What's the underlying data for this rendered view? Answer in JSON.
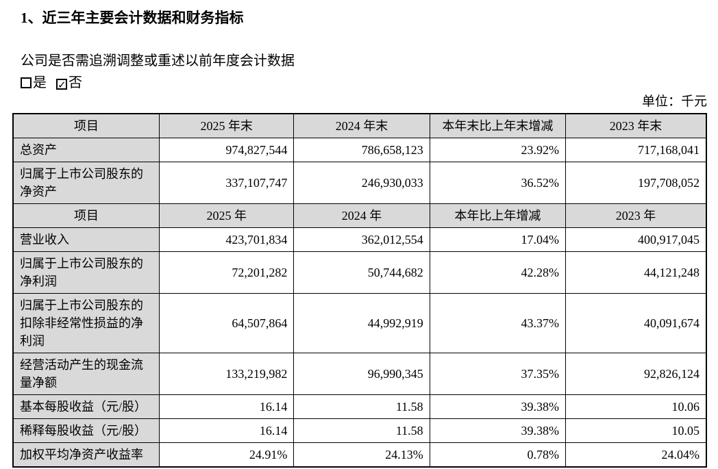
{
  "page": {
    "title": "1、近三年主要会计数据和财务指标",
    "question": "公司是否需追溯调整或重述以前年度会计数据",
    "options": [
      {
        "label": "是",
        "checked": false
      },
      {
        "label": "否",
        "checked": true
      }
    ],
    "unit_label": "单位：千元"
  },
  "colors": {
    "header_bg": "#d9d9d9",
    "border": "#000000",
    "text": "#000000",
    "background": "#ffffff"
  },
  "chart_data": {
    "type": "table",
    "title": "近三年主要会计数据和财务指标",
    "unit": "千元",
    "sections": [
      {
        "header": [
          "项目",
          "2025 年末",
          "2024 年末",
          "本年末比上年末增减",
          "2023 年末"
        ],
        "rows": [
          {
            "label": "总资产",
            "values": [
              "974,827,544",
              "786,658,123",
              "23.92%",
              "717,168,041"
            ]
          },
          {
            "label": "归属于上市公司股东的净资产",
            "values": [
              "337,107,747",
              "246,930,033",
              "36.52%",
              "197,708,052"
            ]
          }
        ]
      },
      {
        "header": [
          "项目",
          "2025 年",
          "2024 年",
          "本年比上年增减",
          "2023 年"
        ],
        "rows": [
          {
            "label": "营业收入",
            "values": [
              "423,701,834",
              "362,012,554",
              "17.04%",
              "400,917,045"
            ]
          },
          {
            "label": "归属于上市公司股东的净利润",
            "values": [
              "72,201,282",
              "50,744,682",
              "42.28%",
              "44,121,248"
            ]
          },
          {
            "label": "归属于上市公司股东的扣除非经常性损益的净利润",
            "values": [
              "64,507,864",
              "44,992,919",
              "43.37%",
              "40,091,674"
            ]
          },
          {
            "label": "经营活动产生的现金流量净额",
            "values": [
              "133,219,982",
              "96,990,345",
              "37.35%",
              "92,826,124"
            ]
          },
          {
            "label": "基本每股收益（元/股）",
            "values": [
              "16.14",
              "11.58",
              "39.38%",
              "10.06"
            ]
          },
          {
            "label": "稀释每股收益（元/股）",
            "values": [
              "16.14",
              "11.58",
              "39.38%",
              "10.05"
            ]
          },
          {
            "label": "加权平均净资产收益率",
            "values": [
              "24.91%",
              "24.13%",
              "0.78%",
              "24.04%"
            ]
          }
        ]
      }
    ]
  }
}
